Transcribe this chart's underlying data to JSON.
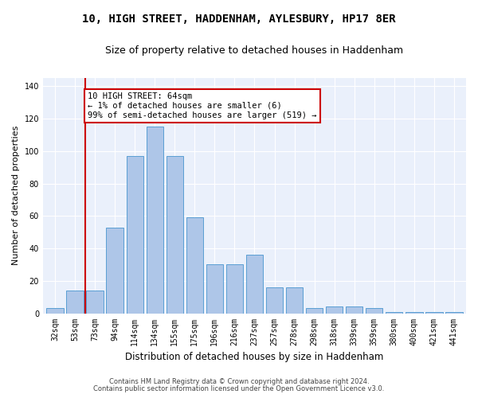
{
  "title": "10, HIGH STREET, HADDENHAM, AYLESBURY, HP17 8ER",
  "subtitle": "Size of property relative to detached houses in Haddenham",
  "xlabel": "Distribution of detached houses by size in Haddenham",
  "ylabel": "Number of detached properties",
  "categories": [
    "32sqm",
    "53sqm",
    "73sqm",
    "94sqm",
    "114sqm",
    "134sqm",
    "155sqm",
    "175sqm",
    "196sqm",
    "216sqm",
    "237sqm",
    "257sqm",
    "278sqm",
    "298sqm",
    "318sqm",
    "339sqm",
    "359sqm",
    "380sqm",
    "400sqm",
    "421sqm",
    "441sqm"
  ],
  "values": [
    3,
    14,
    14,
    53,
    97,
    115,
    97,
    59,
    30,
    30,
    36,
    16,
    16,
    3,
    4,
    4,
    3,
    1,
    1,
    1,
    1
  ],
  "bar_color": "#aec6e8",
  "bar_edgecolor": "#5a9fd4",
  "vline_x_index": 1.5,
  "vline_color": "#cc0000",
  "annotation_text": "10 HIGH STREET: 64sqm\n← 1% of detached houses are smaller (6)\n99% of semi-detached houses are larger (519) →",
  "annotation_box_edgecolor": "#cc0000",
  "annotation_box_facecolor": "#ffffff",
  "ylim": [
    0,
    145
  ],
  "yticks": [
    0,
    20,
    40,
    60,
    80,
    100,
    120,
    140
  ],
  "footer1": "Contains HM Land Registry data © Crown copyright and database right 2024.",
  "footer2": "Contains public sector information licensed under the Open Government Licence v3.0.",
  "bg_color": "#eaf0fb",
  "plot_bg_color": "#eaf0fb",
  "title_fontsize": 10,
  "subtitle_fontsize": 9,
  "tick_fontsize": 7,
  "ylabel_fontsize": 8,
  "xlabel_fontsize": 8.5,
  "footer_fontsize": 6,
  "annotation_fontsize": 7.5
}
